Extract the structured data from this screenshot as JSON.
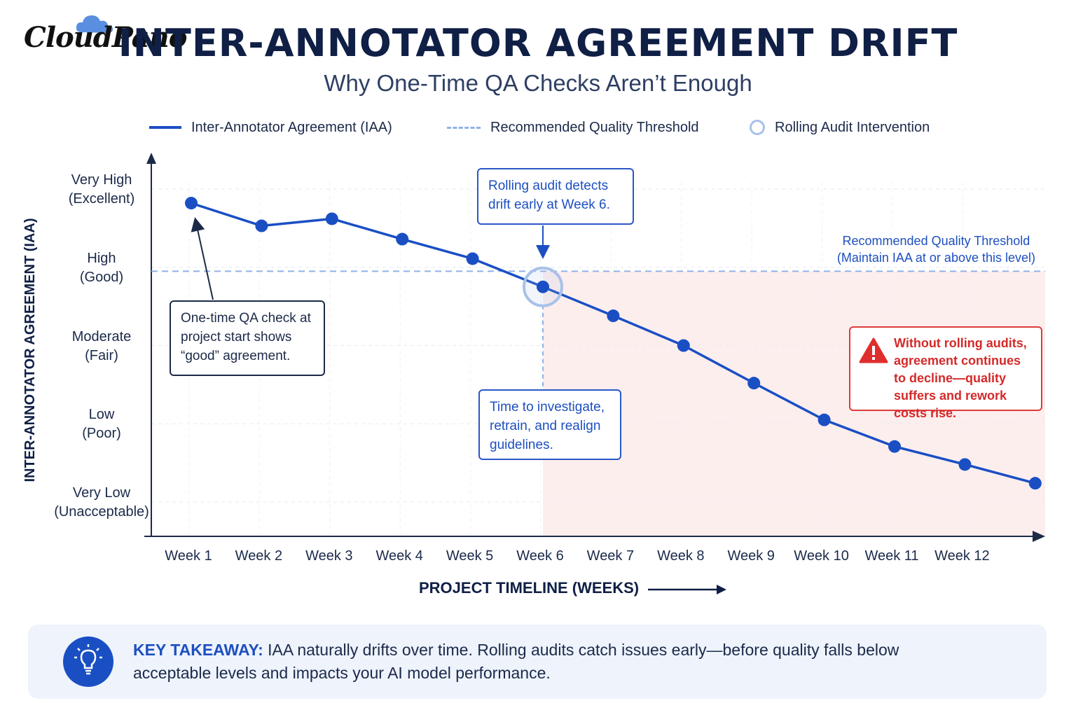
{
  "brand": {
    "logo_text": "CloudPano"
  },
  "header": {
    "title": "INTER-ANNOTATOR AGREEMENT DRIFT",
    "subtitle": "Why One-Time QA Checks Aren’t Enough"
  },
  "legend": {
    "iaa": "Inter-Annotator Agreement (IAA)",
    "threshold": "Recommended Quality Threshold",
    "audit": "Rolling Audit Intervention"
  },
  "chart_data": {
    "type": "line",
    "ylabel": "INTER-ANNOTATOR AGREEMENT (IAA)",
    "xlabel": "PROJECT TIMELINE (WEEKS)",
    "categories": [
      "Week 1",
      "Week 2",
      "Week 3",
      "Week 4",
      "Week 5",
      "Week 6",
      "Week 7",
      "Week 8",
      "Week 9",
      "Week 10",
      "Week 11",
      "Week 12",
      ""
    ],
    "y_levels": [
      {
        "value": 0,
        "label": "Very Low",
        "sub": "(Unacceptable)"
      },
      {
        "value": 1,
        "label": "Low",
        "sub": "(Poor)"
      },
      {
        "value": 2,
        "label": "Moderate",
        "sub": "(Fair)"
      },
      {
        "value": 3,
        "label": "High",
        "sub": "(Good)"
      },
      {
        "value": 4,
        "label": "Very High",
        "sub": "(Excellent)"
      }
    ],
    "ylim": [
      -0.3,
      4.2
    ],
    "series": [
      {
        "name": "Inter-Annotator Agreement (IAA)",
        "values": [
          3.82,
          3.53,
          3.62,
          3.36,
          3.11,
          2.75,
          2.38,
          2.0,
          1.52,
          1.05,
          0.71,
          0.48,
          0.24
        ]
      }
    ],
    "threshold": 2.95,
    "intervention_index": 5,
    "grid": true,
    "colors": {
      "line": "#1a4fc4",
      "threshold": "#8fb2e6",
      "ring": "#a8c1ea",
      "risk_zone": "#fdeeee"
    }
  },
  "annotations": {
    "qa_check": "One-time QA check at project start shows “good” agreement.",
    "rolling_audit": "Rolling audit detects drift early at Week 6.",
    "investigate": "Time to investigate, retrain, and realign guidelines.",
    "threshold_title": "Recommended Quality Threshold",
    "threshold_sub": "(Maintain IAA at or above this level)",
    "warning": "Without rolling audits, agreement continues to decline—quality suffers and rework costs rise."
  },
  "takeaway": {
    "heading": "KEY TAKEAWAY:",
    "text": " IAA naturally drifts over time. Rolling audits catch issues early—before quality falls below acceptable levels and impacts your AI model performance."
  }
}
